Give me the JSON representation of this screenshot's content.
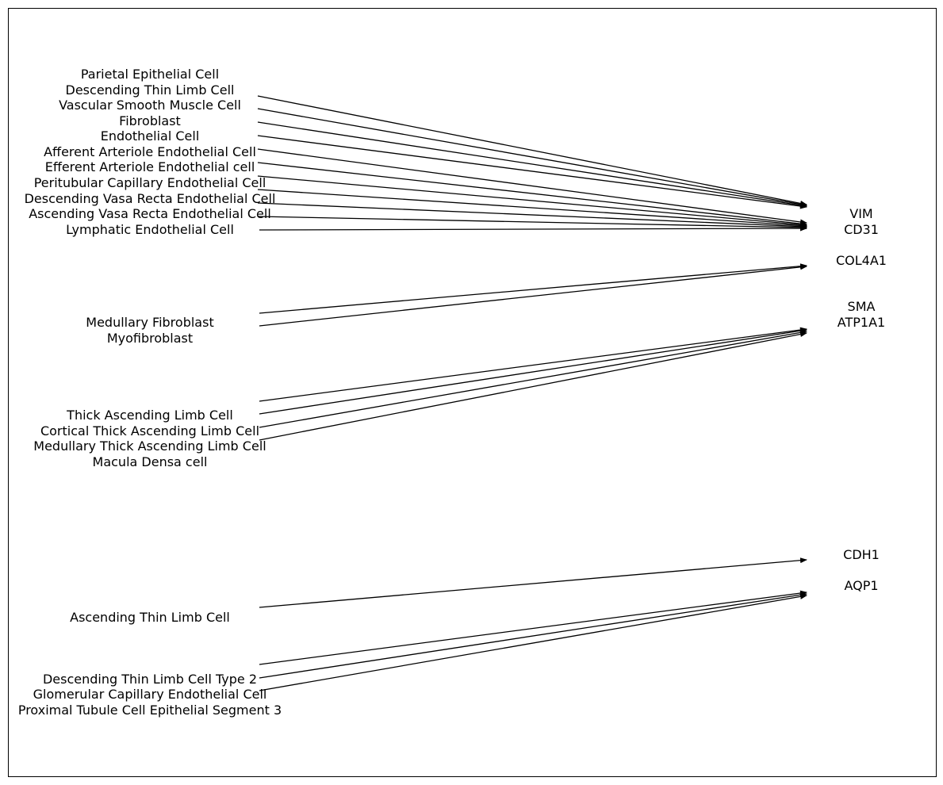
{
  "diagram": {
    "colors": {
      "line": "#000000",
      "text": "#000000",
      "background": "#ffffff",
      "frame": "#000000"
    },
    "cell_types": [
      "Parietal Epithelial Cell",
      "Descending Thin Limb Cell",
      "Vascular Smooth Muscle Cell",
      "Fibroblast",
      "Endothelial Cell",
      "Afferent Arteriole Endothelial Cell",
      "Efferent Arteriole Endothelial cell",
      "Peritubular Capillary Endothelial Cell",
      "Descending Vasa Recta Endothelial Cell",
      "Ascending Vasa Recta Endothelial Cell",
      "Lymphatic Endothelial Cell",
      "Medullary Fibroblast",
      "Myofibroblast",
      "Thick Ascending Limb Cell",
      "Cortical Thick Ascending Limb Cell",
      "Medullary Thick Ascending Limb Cell",
      "Macula Densa cell",
      "Ascending Thin Limb Cell",
      "Descending Thin Limb Cell Type 2",
      "Glomerular Capillary Endothelial Cell",
      "Proximal Tubule Cell Epithelial Segment 3"
    ],
    "markers": [
      "VIM",
      "CD31",
      "COL4A1",
      "SMA",
      "ATP1A1",
      "CDH1",
      "AQP1"
    ]
  }
}
